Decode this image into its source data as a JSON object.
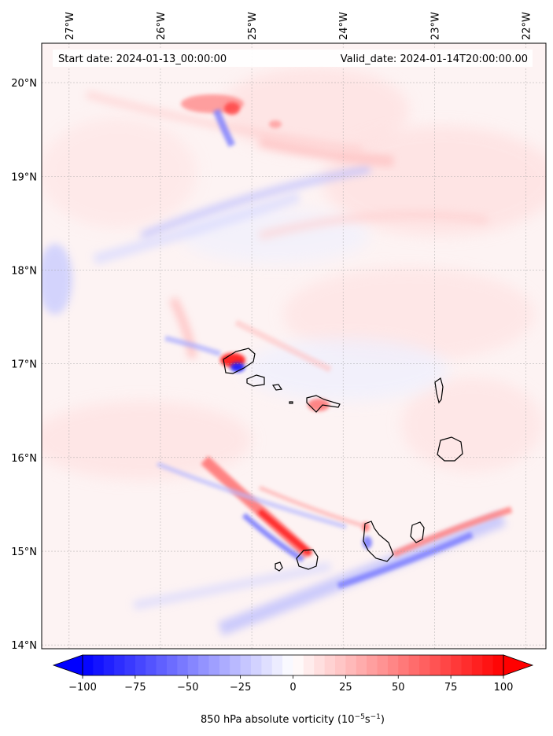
{
  "map": {
    "start_date_text": "Start date: 2024-01-13_00:00:00",
    "valid_date_text": "Valid_date: 2024-01-14T20:00:00.00",
    "extent": {
      "lon_min": -27.3,
      "lon_max": -21.78,
      "lat_min": 13.96,
      "lat_max": 20.42
    },
    "lon_ticks": [
      {
        "value": -27,
        "label": "27°W"
      },
      {
        "value": -26,
        "label": "26°W"
      },
      {
        "value": -25,
        "label": "25°W"
      },
      {
        "value": -24,
        "label": "24°W"
      },
      {
        "value": -23,
        "label": "23°W"
      },
      {
        "value": -22,
        "label": "22°W"
      }
    ],
    "lat_ticks": [
      {
        "value": 20,
        "label": "20°N"
      },
      {
        "value": 19,
        "label": "19°N"
      },
      {
        "value": 18,
        "label": "18°N"
      },
      {
        "value": 17,
        "label": "17°N"
      },
      {
        "value": 16,
        "label": "16°N"
      },
      {
        "value": 15,
        "label": "15°N"
      },
      {
        "value": 14,
        "label": "14°N"
      }
    ],
    "islands": [
      {
        "name": "Santo Antão",
        "lon": -25.17,
        "lat": 17.05
      },
      {
        "name": "São Vicente",
        "lon": -24.96,
        "lat": 16.84
      },
      {
        "name": "Santa Luzia",
        "lon": -24.73,
        "lat": 16.77
      },
      {
        "name": "São Nicolau",
        "lon": -24.27,
        "lat": 16.6
      },
      {
        "name": "Sal",
        "lon": -22.94,
        "lat": 16.72
      },
      {
        "name": "Boa Vista",
        "lon": -22.83,
        "lat": 16.09
      },
      {
        "name": "Maio",
        "lon": -23.15,
        "lat": 15.19
      },
      {
        "name": "Santiago",
        "lon": -23.62,
        "lat": 15.08
      },
      {
        "name": "Fogo",
        "lon": -24.38,
        "lat": 14.93
      },
      {
        "name": "Brava",
        "lon": -24.71,
        "lat": 14.85
      }
    ],
    "vorticity_features": [
      {
        "kind": "positive",
        "lon": -25.6,
        "lat": 19.7,
        "value": 45
      },
      {
        "kind": "negative",
        "lon": -25.4,
        "lat": 19.55,
        "value": -45
      },
      {
        "kind": "positive",
        "lon": -25.15,
        "lat": 17.05,
        "value": 100
      },
      {
        "kind": "negative",
        "lon": -25.05,
        "lat": 16.95,
        "value": -100
      },
      {
        "kind": "positive",
        "lon": -24.85,
        "lat": 15.45,
        "value": 80
      },
      {
        "kind": "negative",
        "lon": -24.55,
        "lat": 15.0,
        "value": -70
      },
      {
        "kind": "negative",
        "lon": -23.0,
        "lat": 14.75,
        "value": -60
      },
      {
        "kind": "positive",
        "lon": -22.5,
        "lat": 15.2,
        "value": 60
      },
      {
        "kind": "negative",
        "lon": -25.6,
        "lat": 18.6,
        "value": -25
      },
      {
        "kind": "positive",
        "lon": -23.9,
        "lat": 16.5,
        "value": 40
      }
    ]
  },
  "colorbar": {
    "min": -100,
    "max": 100,
    "levels": 40,
    "negative_color": "#0000ff",
    "positive_color": "#ff0000",
    "ticks": [
      {
        "value": -100,
        "label": "−100"
      },
      {
        "value": -75,
        "label": "−75"
      },
      {
        "value": -50,
        "label": "−50"
      },
      {
        "value": -25,
        "label": "−25"
      },
      {
        "value": 0,
        "label": "0"
      },
      {
        "value": 25,
        "label": "25"
      },
      {
        "value": 50,
        "label": "50"
      },
      {
        "value": 75,
        "label": "75"
      },
      {
        "value": 100,
        "label": "100"
      }
    ],
    "label_main": "850 hPa absolute vorticity (10",
    "label_exp1": "−5",
    "label_mid": "s",
    "label_exp2": "−1",
    "label_end": ")"
  }
}
